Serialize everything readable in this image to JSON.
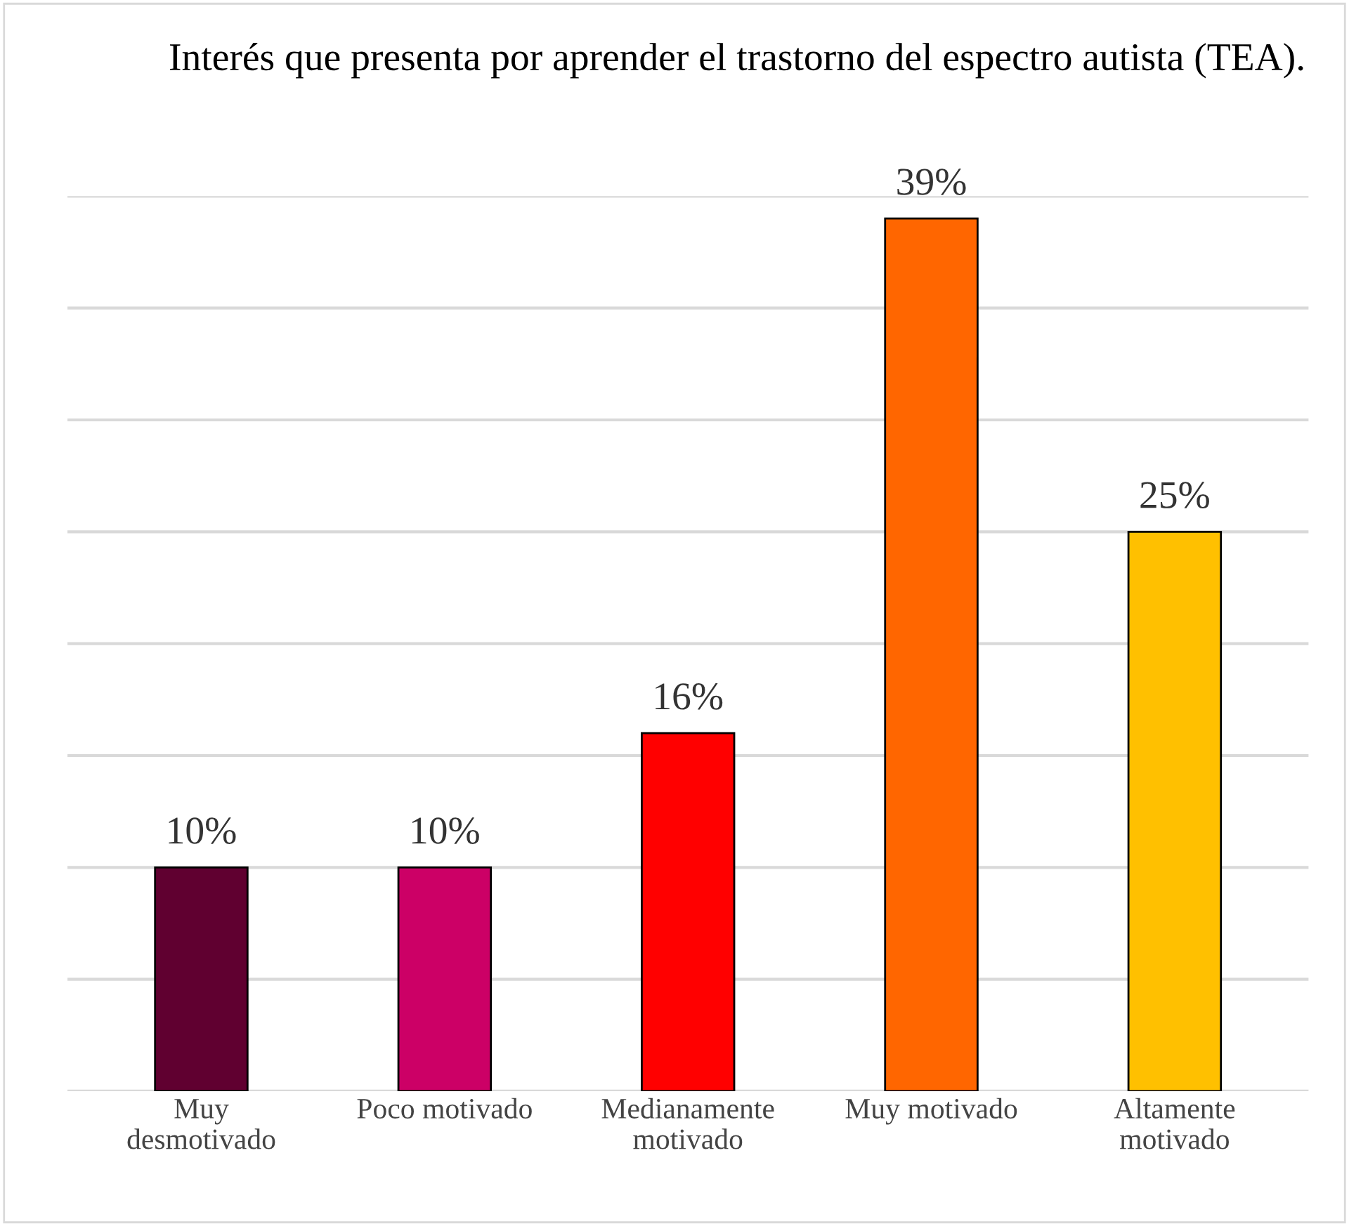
{
  "chart_data": {
    "type": "bar",
    "title": "Interés que presenta por aprender el trastorno del espectro autista (TEA).",
    "categories": [
      "Muy\ndesmotivado",
      "Poco motivado",
      "Medianamente\nmotivado",
      "Muy motivado",
      "Altamente\nmotivado"
    ],
    "values": [
      10,
      10,
      16,
      39,
      25
    ],
    "value_labels": [
      "10%",
      "10%",
      "16%",
      "39%",
      "25%"
    ],
    "colors": [
      "#600030",
      "#cc0066",
      "#ff0000",
      "#ff6600",
      "#ffc000"
    ],
    "ylim": [
      0,
      40
    ],
    "yticks": [
      {
        "value": 0,
        "label": null
      },
      {
        "value": 5,
        "label": null
      },
      {
        "value": 10,
        "label": null
      },
      {
        "value": 15,
        "label": null
      },
      {
        "value": 20,
        "label": null
      },
      {
        "value": 25,
        "label": null
      },
      {
        "value": 30,
        "label": null
      },
      {
        "value": 35,
        "label": null
      },
      {
        "value": 40,
        "label": null
      }
    ],
    "grid": "y",
    "tick_labels": "x"
  }
}
